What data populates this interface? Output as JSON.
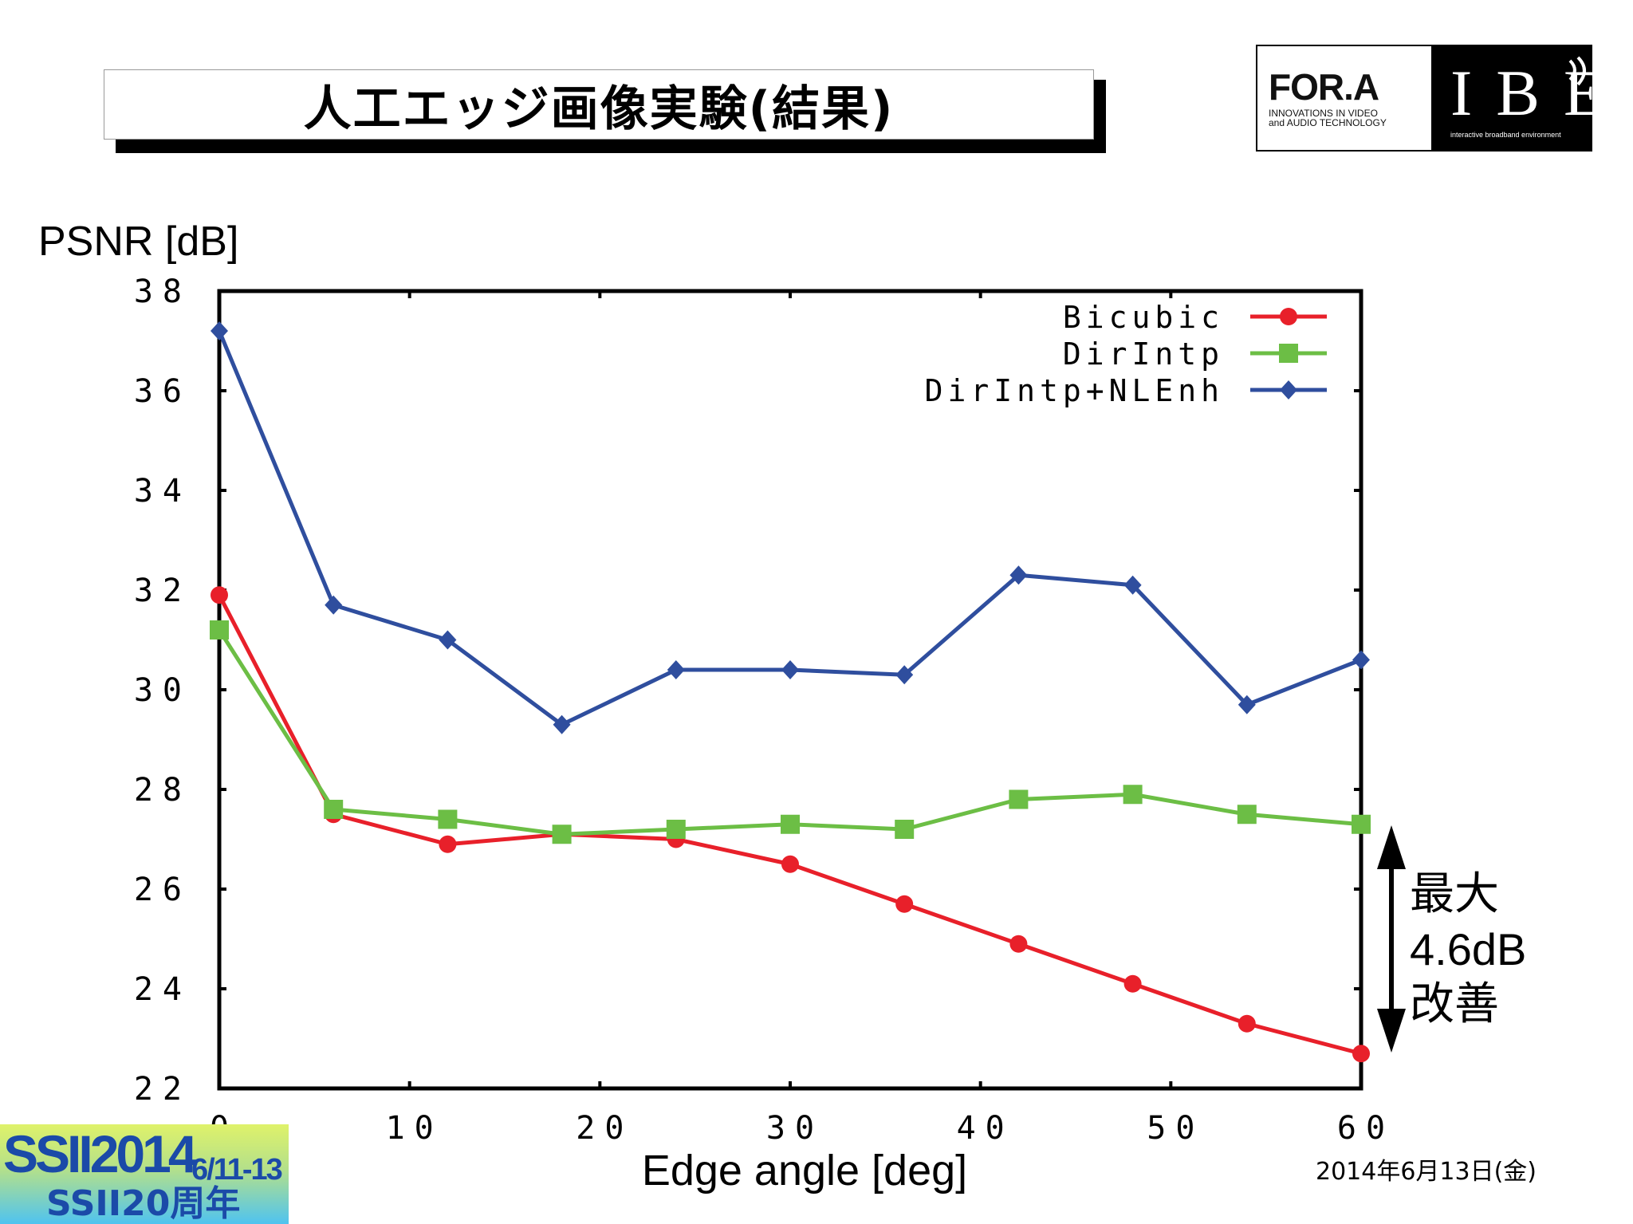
{
  "slide": {
    "title": "人工エッジ画像実験(結果)",
    "date": "2014年6月13日(金)"
  },
  "logo": {
    "fora_wordmark": "FOR.A",
    "fora_tagline_line1": "INNOVATIONS IN VIDEO",
    "fora_tagline_line2": "and AUDIO TECHNOLOGY",
    "ibe_wordmark": "IBE",
    "ibe_tagline": "interactive broadband environment"
  },
  "badge": {
    "main": "SSII2014",
    "dates": "6/11-13",
    "sub": "SSII20周年"
  },
  "annotation": {
    "line1": "最大",
    "line2": "4.6dB",
    "line3": "改善"
  },
  "colors": {
    "bicubic": "#e8202a",
    "dirintp": "#6cbe45",
    "dirintp_nlenh": "#2f4e9e",
    "axis": "#000000"
  },
  "chart_data": {
    "type": "line",
    "title": "",
    "xlabel": "Edge angle [deg]",
    "ylabel": "PSNR [dB]",
    "xlim": [
      0,
      60
    ],
    "ylim": [
      22,
      38
    ],
    "xticks": [
      0,
      10,
      20,
      30,
      40,
      50,
      60
    ],
    "yticks": [
      22,
      24,
      26,
      28,
      30,
      32,
      34,
      36,
      38
    ],
    "legend_position": "top-right",
    "x": [
      0,
      6,
      12,
      18,
      24,
      30,
      36,
      42,
      48,
      54,
      60
    ],
    "series": [
      {
        "name": "Bicubic",
        "marker": "circle",
        "color_key": "bicubic",
        "values": [
          31.9,
          27.5,
          26.9,
          27.1,
          27.0,
          26.5,
          25.7,
          24.9,
          24.1,
          23.3,
          22.7
        ]
      },
      {
        "name": "DirIntp",
        "marker": "square",
        "color_key": "dirintp",
        "values": [
          31.2,
          27.6,
          27.4,
          27.1,
          27.2,
          27.3,
          27.2,
          27.8,
          27.9,
          27.5,
          27.3
        ]
      },
      {
        "name": "DirIntp+NLEnh",
        "marker": "diamond",
        "color_key": "dirintp_nlenh",
        "values": [
          37.2,
          31.7,
          31.0,
          29.3,
          30.4,
          30.4,
          30.3,
          32.3,
          32.1,
          29.7,
          30.6
        ]
      }
    ]
  }
}
